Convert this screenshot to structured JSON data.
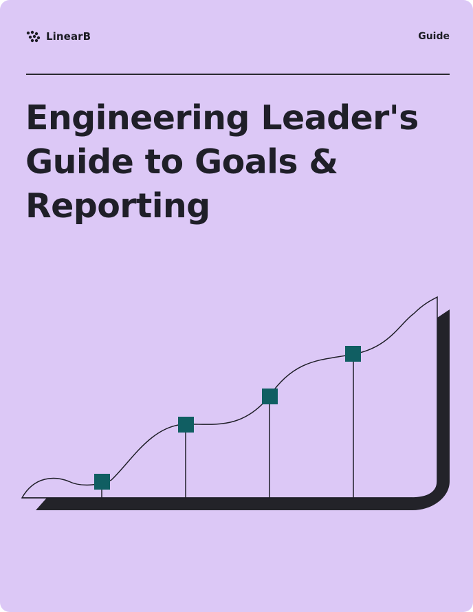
{
  "brand": {
    "name": "LinearB",
    "logo_icon": "linearb-logo-icon"
  },
  "header": {
    "doc_type": "Guide"
  },
  "title": {
    "lines": [
      "Engineering Leader's",
      "Guide to Goals &",
      "Reporting"
    ]
  },
  "colors": {
    "background": "#dcc8f6",
    "text": "#1f1f28",
    "marker": "#105e62",
    "shadow": "#232329"
  },
  "illustration": {
    "kind": "decorative-growth-curve",
    "marker_count": 4,
    "icon": "growth-curve-illustration"
  }
}
